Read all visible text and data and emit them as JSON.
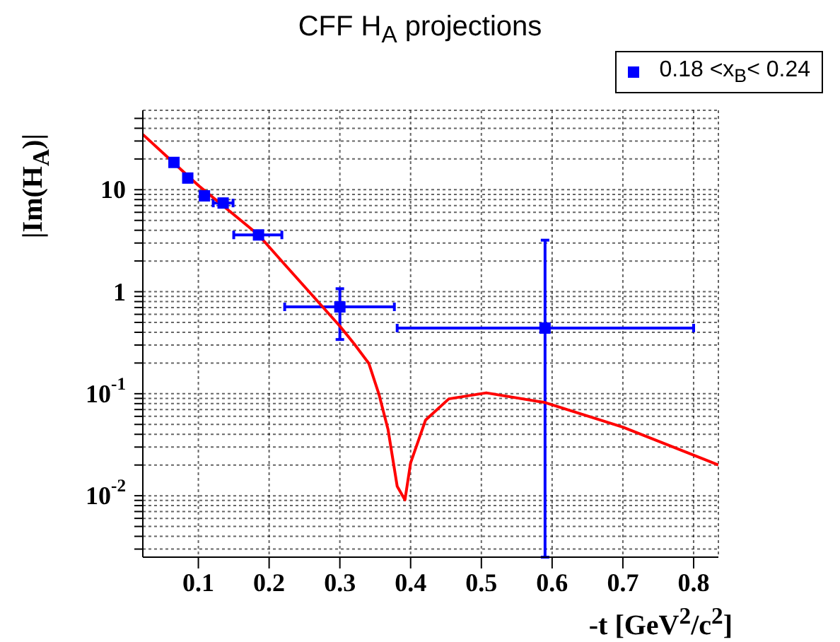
{
  "chart_data": {
    "type": "scatter",
    "title": "CFF H$_{A}$ projections",
    "xlabel": "-t [GeV$^{2}$/c$^{2}$]",
    "ylabel": "|Im(H$_{A}$)|",
    "xlim": [
      0.0215,
      0.835
    ],
    "xticks": [
      0.1,
      0.2,
      0.3,
      0.4,
      0.5,
      0.6,
      0.7,
      0.8
    ],
    "ylim": [
      0.0025,
      60
    ],
    "log": "y",
    "yticks": [
      {
        "value": 0.003,
        "label": null
      },
      {
        "value": 0.004,
        "label": null
      },
      {
        "value": 0.005,
        "label": null
      },
      {
        "value": 0.006,
        "label": null
      },
      {
        "value": 0.007,
        "label": null
      },
      {
        "value": 0.008,
        "label": null
      },
      {
        "value": 0.009,
        "label": null
      },
      {
        "value": 0.01,
        "label": "10$^{-2}$"
      },
      {
        "value": 0.02,
        "label": null
      },
      {
        "value": 0.03,
        "label": null
      },
      {
        "value": 0.04,
        "label": null
      },
      {
        "value": 0.05,
        "label": null
      },
      {
        "value": 0.06,
        "label": null
      },
      {
        "value": 0.07,
        "label": null
      },
      {
        "value": 0.08,
        "label": null
      },
      {
        "value": 0.09,
        "label": null
      },
      {
        "value": 0.1,
        "label": "10$^{-1}$"
      },
      {
        "value": 0.2,
        "label": null
      },
      {
        "value": 0.3,
        "label": null
      },
      {
        "value": 0.4,
        "label": null
      },
      {
        "value": 0.5,
        "label": null
      },
      {
        "value": 0.6,
        "label": null
      },
      {
        "value": 0.7,
        "label": null
      },
      {
        "value": 0.8,
        "label": null
      },
      {
        "value": 0.9,
        "label": null
      },
      {
        "value": 1,
        "label": "1"
      },
      {
        "value": 2,
        "label": null
      },
      {
        "value": 3,
        "label": null
      },
      {
        "value": 4,
        "label": null
      },
      {
        "value": 5,
        "label": null
      },
      {
        "value": 6,
        "label": null
      },
      {
        "value": 7,
        "label": null
      },
      {
        "value": 8,
        "label": null
      },
      {
        "value": 9,
        "label": null
      },
      {
        "value": 10,
        "label": "10"
      },
      {
        "value": 20,
        "label": null
      },
      {
        "value": 30,
        "label": null
      },
      {
        "value": 40,
        "label": null
      },
      {
        "value": 50,
        "label": null
      }
    ],
    "grid": true,
    "legend": "top right",
    "marker": "square",
    "series": [
      {
        "name": "0.18 <x$_{B}$< 0.24",
        "color": "#0000ff",
        "x": [
          0.0655,
          0.085,
          0.1086,
          0.135,
          0.185,
          0.3,
          0.59
        ],
        "values": [
          18.5,
          13,
          8.7,
          7.4,
          3.6,
          0.71,
          0.44
        ],
        "xerrors": [
          null,
          null,
          null,
          0.014,
          [
            0.15,
            0.218
          ],
          [
            0.222,
            0.377
          ],
          [
            0.381,
            0.8
          ]
        ],
        "errors": [
          null,
          null,
          null,
          null,
          null,
          [
            0.34,
            1.07
          ],
          [
            0.0025,
            3.2
          ]
        ]
      },
      {
        "type": "line",
        "color": "#ff0000",
        "marker": "none",
        "line_style": "solid",
        "x": [
          0.0215,
          0.1,
          0.185,
          0.222,
          0.3,
          0.32,
          0.341,
          0.355,
          0.368,
          0.381,
          0.392,
          0.4,
          0.421,
          0.454,
          0.507,
          0.59,
          0.7,
          0.82,
          0.835
        ],
        "values": [
          34.8,
          11,
          3.6,
          1.85,
          0.46,
          0.31,
          0.198,
          0.1,
          0.045,
          0.0124,
          0.0091,
          0.021,
          0.055,
          0.089,
          0.102,
          0.082,
          0.047,
          0.022,
          0.02
        ]
      }
    ]
  }
}
